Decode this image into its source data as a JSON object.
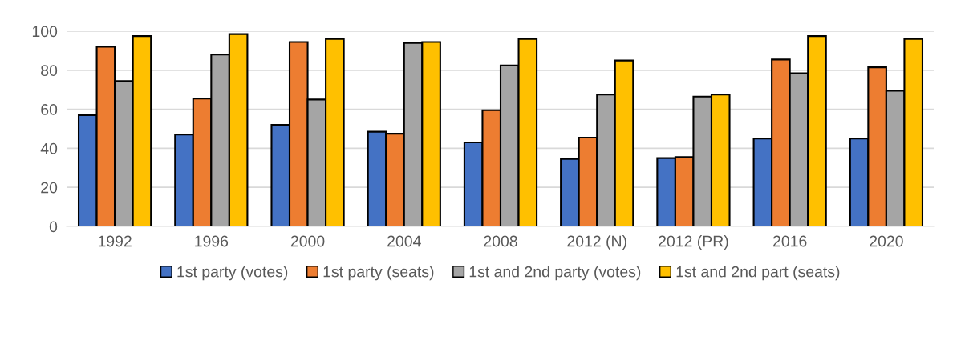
{
  "chart_data": {
    "type": "bar",
    "categories": [
      "1992",
      "1996",
      "2000",
      "2004",
      "2008",
      "2012 (N)",
      "2012 (PR)",
      "2016",
      "2020"
    ],
    "series": [
      {
        "name": "1st party (votes)",
        "color": "#4472c4",
        "values": [
          57,
          47,
          52,
          48.5,
          43,
          34.5,
          35,
          45,
          45
        ]
      },
      {
        "name": "1st party (seats)",
        "color": "#ed7d31",
        "values": [
          92,
          65.5,
          94.5,
          47.5,
          59.5,
          45.5,
          35.5,
          85.5,
          81.5
        ]
      },
      {
        "name": "1st and 2nd party (votes)",
        "color": "#a5a5a5",
        "values": [
          74.5,
          88,
          65,
          94,
          82.5,
          67.5,
          66.5,
          78.5,
          69.5
        ]
      },
      {
        "name": "1st and 2nd part (seats)",
        "color": "#ffc000",
        "values": [
          97.5,
          98.5,
          96,
          94.5,
          96,
          85,
          67.5,
          97.5,
          96
        ]
      }
    ],
    "ylim": [
      0,
      100
    ],
    "yticks": [
      0,
      20,
      40,
      60,
      80,
      100
    ],
    "grid": "y",
    "legend": "bottom"
  }
}
